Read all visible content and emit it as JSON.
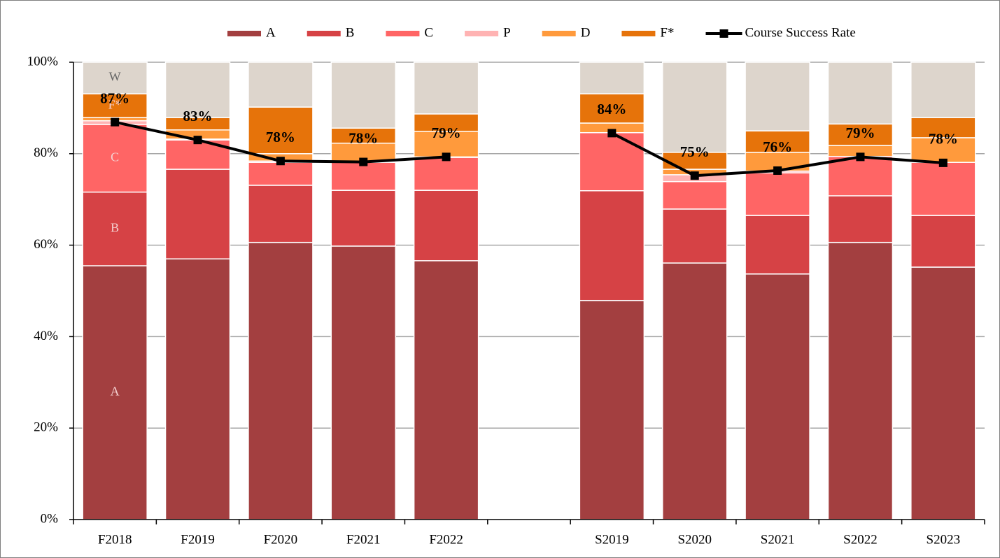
{
  "chart_data": {
    "type": "stacked_bar_line",
    "categories": [
      "F2018",
      "F2019",
      "F2020",
      "F2021",
      "F2022",
      null,
      "S2019",
      "S2020",
      "S2021",
      "S2022",
      "S2023"
    ],
    "series": [
      {
        "name": "A",
        "color": "#a33f40",
        "values": [
          55.5,
          57.0,
          60.6,
          59.8,
          56.6,
          null,
          47.9,
          56.1,
          53.7,
          60.6,
          55.2
        ]
      },
      {
        "name": "B",
        "color": "#d64245",
        "values": [
          16.1,
          19.6,
          12.5,
          12.2,
          15.4,
          null,
          24.0,
          11.8,
          12.8,
          10.2,
          11.3
        ]
      },
      {
        "name": "C",
        "color": "#ff6565",
        "values": [
          14.8,
          6.4,
          5.0,
          6.1,
          7.2,
          null,
          12.7,
          6.0,
          9.3,
          8.6,
          11.6
        ]
      },
      {
        "name": "P",
        "color": "#ffb3b3",
        "values": [
          0.8,
          0.2,
          0.3,
          0.1,
          0.1,
          null,
          0,
          1.5,
          0.4,
          0,
          0
        ]
      },
      {
        "name": "D",
        "color": "#ff9a3c",
        "values": [
          0.7,
          2.0,
          1.6,
          4.1,
          5.6,
          null,
          2.1,
          1.2,
          4.1,
          2.4,
          5.4
        ]
      },
      {
        "name": "F*",
        "color": "#e6730a",
        "values": [
          5.2,
          2.7,
          10.2,
          3.3,
          3.8,
          null,
          6.4,
          3.7,
          4.7,
          4.7,
          4.4
        ]
      },
      {
        "name": "W",
        "color": "#ddd5cc",
        "in_legend": false,
        "values": [
          6.9,
          12.1,
          9.8,
          14.4,
          11.3,
          null,
          6.9,
          19.7,
          15.0,
          13.5,
          12.1
        ]
      }
    ],
    "line": {
      "name": "Course Success Rate",
      "color": "#000000",
      "values": [
        86.9,
        83.0,
        78.4,
        78.2,
        79.3,
        null,
        84.5,
        75.2,
        76.3,
        79.3,
        78.0
      ],
      "value_labels": [
        "87%",
        "83%",
        "78%",
        "78%",
        "79%",
        null,
        "84%",
        "75%",
        "76%",
        "79%",
        "78%"
      ]
    },
    "ylim": [
      0,
      100
    ],
    "yticks": [
      {
        "value": 0,
        "label": "0%"
      },
      {
        "value": 20,
        "label": "20%"
      },
      {
        "value": 40,
        "label": "40%"
      },
      {
        "value": 60,
        "label": "60%"
      },
      {
        "value": 80,
        "label": "80%"
      },
      {
        "value": 100,
        "label": "100%"
      }
    ],
    "grid": true
  }
}
